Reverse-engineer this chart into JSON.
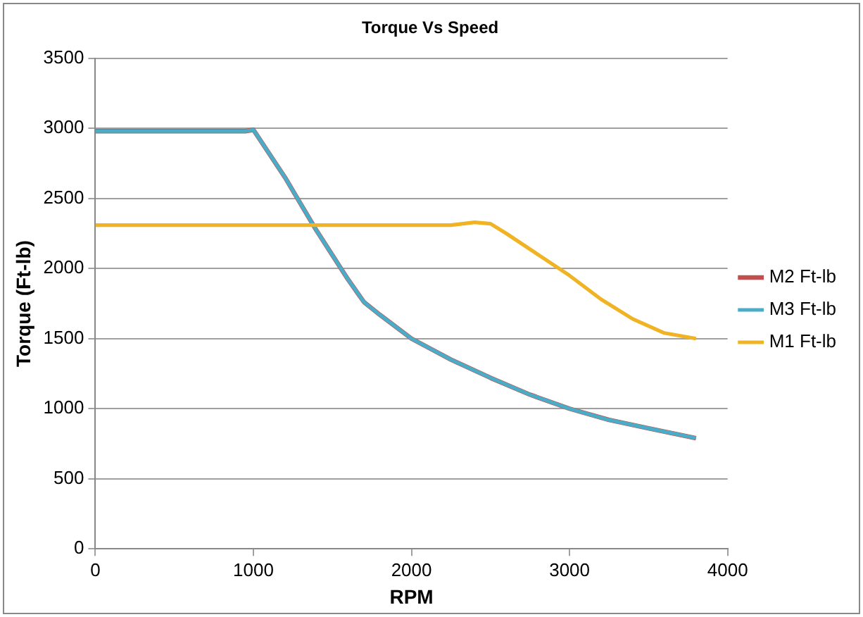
{
  "chart_data": {
    "type": "line",
    "title": "Torque Vs Speed",
    "xlabel": "RPM",
    "ylabel": "Torque (Ft-lb)",
    "xlim": [
      0,
      4000
    ],
    "xticks": [
      0,
      1000,
      2000,
      3000,
      4000
    ],
    "ylim": [
      0,
      3500
    ],
    "yticks": [
      0,
      500,
      1000,
      1500,
      2000,
      2500,
      3000,
      3500
    ],
    "grid": "y",
    "legend": "right",
    "marker": "none",
    "series": [
      {
        "name": "M2 Ft-lb",
        "color": "#c0504d",
        "x": [
          0,
          950,
          1000,
          1200,
          1400,
          1600,
          1700,
          1800,
          2000,
          2250,
          2500,
          2750,
          3000,
          3250,
          3500,
          3800
        ],
        "values": [
          2980,
          2980,
          2990,
          2650,
          2270,
          1920,
          1760,
          1670,
          1500,
          1350,
          1220,
          1100,
          1000,
          920,
          860,
          790
        ]
      },
      {
        "name": "M3 Ft-lb",
        "color": "#4aacc6",
        "x": [
          0,
          950,
          1000,
          1200,
          1400,
          1600,
          1700,
          1800,
          2000,
          2250,
          2500,
          2750,
          3000,
          3250,
          3500,
          3800
        ],
        "values": [
          2980,
          2980,
          2990,
          2650,
          2270,
          1920,
          1760,
          1670,
          1500,
          1350,
          1220,
          1100,
          1000,
          920,
          860,
          790
        ]
      },
      {
        "name": "M1 Ft-lb",
        "color": "#f0b323",
        "x": [
          0,
          1000,
          2000,
          2250,
          2400,
          2500,
          2600,
          2800,
          3000,
          3200,
          3400,
          3600,
          3800
        ],
        "values": [
          2310,
          2310,
          2310,
          2310,
          2330,
          2320,
          2250,
          2100,
          1950,
          1780,
          1640,
          1540,
          1500
        ]
      }
    ]
  }
}
